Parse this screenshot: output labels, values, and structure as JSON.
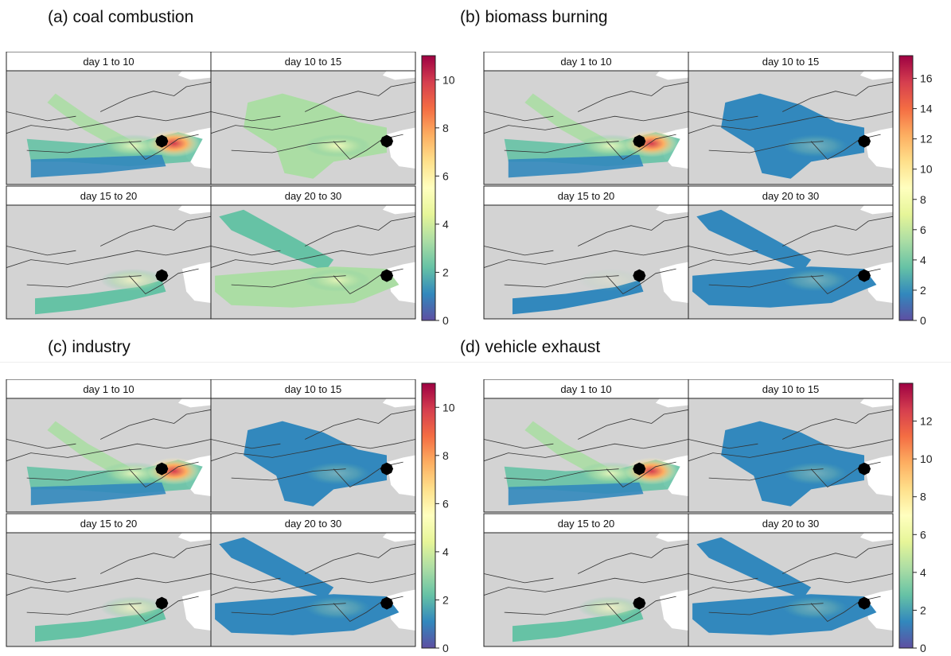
{
  "figures": [
    {
      "title": "(a) coal combustion",
      "colorbar": {
        "min": 0,
        "max": 11,
        "ticks": [
          0,
          2,
          4,
          6,
          8,
          10
        ]
      },
      "panels": [
        {
          "label": "day 1 to 10",
          "pattern": "spread_hot"
        },
        {
          "label": "day 10 to 15",
          "pattern": "blob_mid"
        },
        {
          "label": "day 15 to 20",
          "pattern": "narrow"
        },
        {
          "label": "day 20 to 30",
          "pattern": "spread_mid"
        }
      ]
    },
    {
      "title": "(b) biomass burning",
      "colorbar": {
        "min": 0,
        "max": 17.5,
        "ticks": [
          0,
          2,
          4,
          6,
          8,
          10,
          12,
          14,
          16
        ]
      },
      "panels": [
        {
          "label": "day 1 to 10",
          "pattern": "spread_hot"
        },
        {
          "label": "day 10 to 15",
          "pattern": "blob_low"
        },
        {
          "label": "day 15 to 20",
          "pattern": "narrow_low"
        },
        {
          "label": "day 20 to 30",
          "pattern": "spread_low"
        }
      ]
    },
    {
      "title": "(c) industry",
      "colorbar": {
        "min": 0,
        "max": 11,
        "ticks": [
          0,
          2,
          4,
          6,
          8,
          10
        ]
      },
      "panels": [
        {
          "label": "day 1 to 10",
          "pattern": "spread_hot"
        },
        {
          "label": "day 10 to 15",
          "pattern": "blob_low"
        },
        {
          "label": "day 15 to 20",
          "pattern": "narrow"
        },
        {
          "label": "day 20 to 30",
          "pattern": "spread_low"
        }
      ]
    },
    {
      "title": "(d) vehicle exhaust",
      "colorbar": {
        "min": 0,
        "max": 14,
        "ticks": [
          0,
          2,
          4,
          6,
          8,
          10,
          12
        ]
      },
      "panels": [
        {
          "label": "day 1 to 10",
          "pattern": "spread_hot"
        },
        {
          "label": "day 10 to 15",
          "pattern": "blob_low"
        },
        {
          "label": "day 15 to 20",
          "pattern": "narrow"
        },
        {
          "label": "day 20 to 30",
          "pattern": "spread_low"
        }
      ]
    }
  ],
  "colors": {
    "land": "#d3d3d3",
    "sea": "#ffffff",
    "border_line": "#333333",
    "receptor": "#000000",
    "palette": [
      "#5e4fa2",
      "#3288bd",
      "#66c2a5",
      "#abdda4",
      "#e6f598",
      "#ffffbf",
      "#fee08b",
      "#fdae61",
      "#f46d43",
      "#d53e4f",
      "#9e0142"
    ]
  },
  "chart_data": [
    {
      "type": "heatmap",
      "title": "(a) coal combustion",
      "facets": [
        "day 1 to 10",
        "day 10 to 15",
        "day 15 to 20",
        "day 20 to 30"
      ],
      "colorbar_range": [
        0,
        11
      ]
    },
    {
      "type": "heatmap",
      "title": "(b) biomass burning",
      "facets": [
        "day 1 to 10",
        "day 10 to 15",
        "day 15 to 20",
        "day 20 to 30"
      ],
      "colorbar_range": [
        0,
        17.5
      ]
    },
    {
      "type": "heatmap",
      "title": "(c) industry",
      "facets": [
        "day 1 to 10",
        "day 10 to 15",
        "day 15 to 20",
        "day 20 to 30"
      ],
      "colorbar_range": [
        0,
        11
      ]
    },
    {
      "type": "heatmap",
      "title": "(d) vehicle exhaust",
      "facets": [
        "day 1 to 10",
        "day 10 to 15",
        "day 15 to 20",
        "day 20 to 30"
      ],
      "colorbar_range": [
        0,
        14
      ]
    }
  ]
}
